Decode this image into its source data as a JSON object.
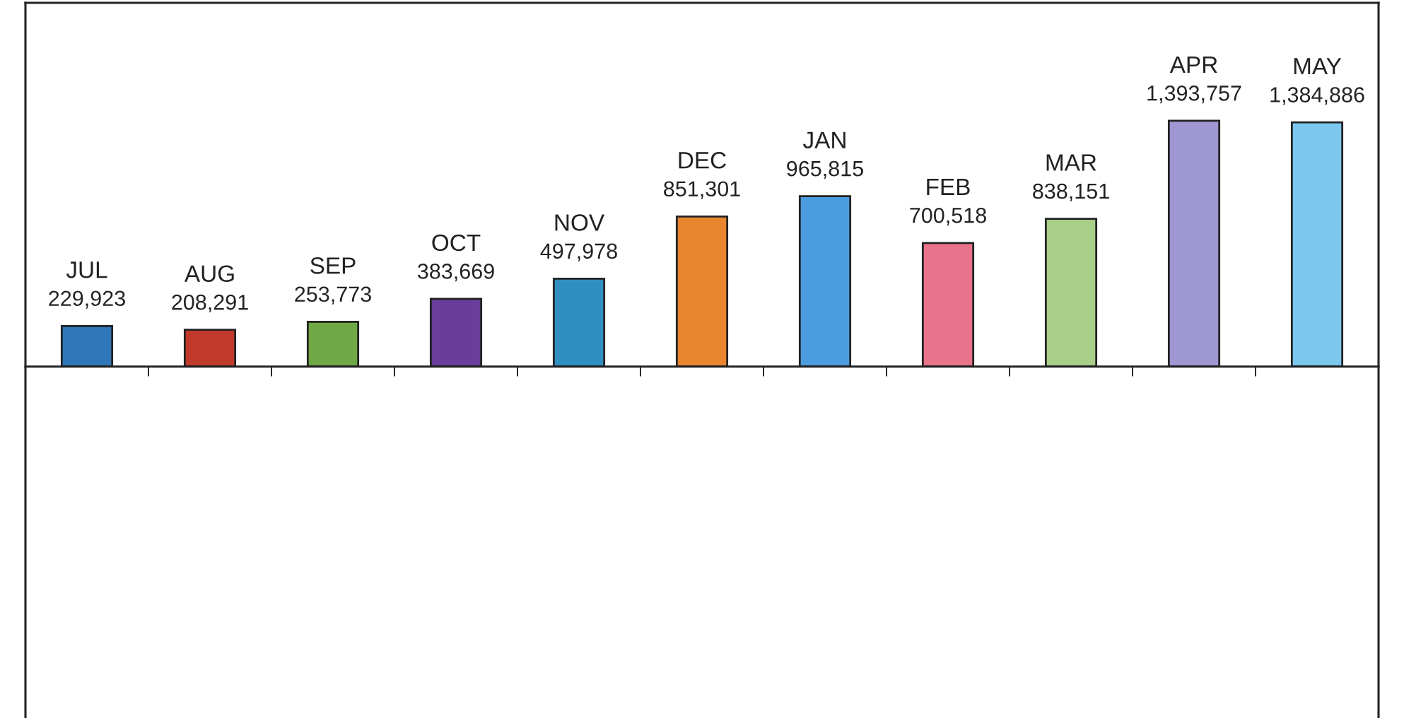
{
  "chart_data": {
    "type": "bar",
    "categories": [
      "JUL",
      "AUG",
      "SEP",
      "OCT",
      "NOV",
      "DEC",
      "JAN",
      "FEB",
      "MAR",
      "APR",
      "MAY"
    ],
    "values": [
      229923,
      208291,
      253773,
      383669,
      497978,
      851301,
      965815,
      700518,
      838151,
      1393757,
      1384886
    ],
    "value_labels": [
      "229,923",
      "208,291",
      "253,773",
      "383,669",
      "497,978",
      "851,301",
      "965,815",
      "700,518",
      "838,151",
      "1,393,757",
      "1,384,886"
    ],
    "colors": [
      "#2f77b8",
      "#c0392b",
      "#6fa845",
      "#6a3d9a",
      "#2f8fc0",
      "#e8852e",
      "#4c9de0",
      "#e8748c",
      "#a8cf88",
      "#9f97d2",
      "#7cc7ee"
    ]
  }
}
